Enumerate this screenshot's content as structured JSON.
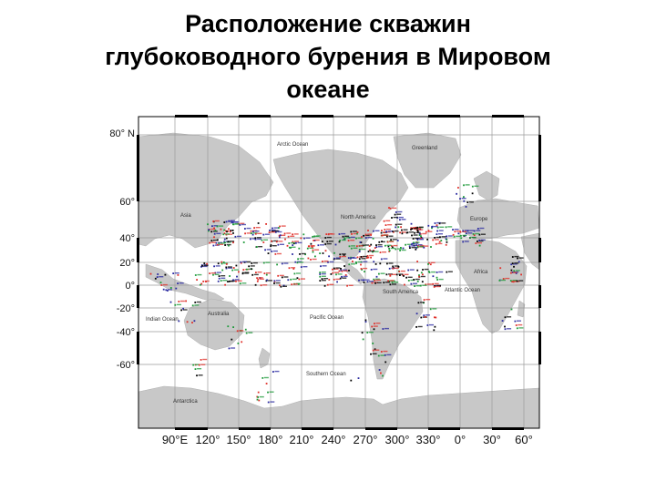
{
  "title": {
    "line1": "Расположение скважин",
    "line2": "глубоководного бурения в Мировом",
    "line3": "океане"
  },
  "latitude_labels": [
    "80° N",
    "60°",
    "40°",
    "20°",
    "0°",
    "-20°",
    "-40°",
    "-60°"
  ],
  "longitude_labels": [
    "90°E",
    "120°",
    "150°",
    "180°",
    "210°",
    "240°",
    "270°",
    "300°",
    "330°",
    "0°",
    "30°",
    "60°"
  ],
  "region_labels": {
    "arctic": "Arctic Ocean",
    "greenland": "Greenland",
    "asia": "Asia",
    "north_america": "North America",
    "europe": "Europe",
    "africa": "Africa",
    "australia": "Australia",
    "south_america": "South America",
    "atlantic": "Atlantic Ocean",
    "indian": "Indian Ocean",
    "pacific": "Pacific Ocean",
    "southern": "Southern Ocean",
    "antarctica": "Antarctica"
  },
  "colors": {
    "land": "#c8c8c8",
    "ocean": "#ffffff",
    "grid": "#9a9a9a",
    "site_red": "#e0302a",
    "site_blue": "#2a2aa0",
    "site_green": "#1e9a3a",
    "site_black": "#000000"
  }
}
